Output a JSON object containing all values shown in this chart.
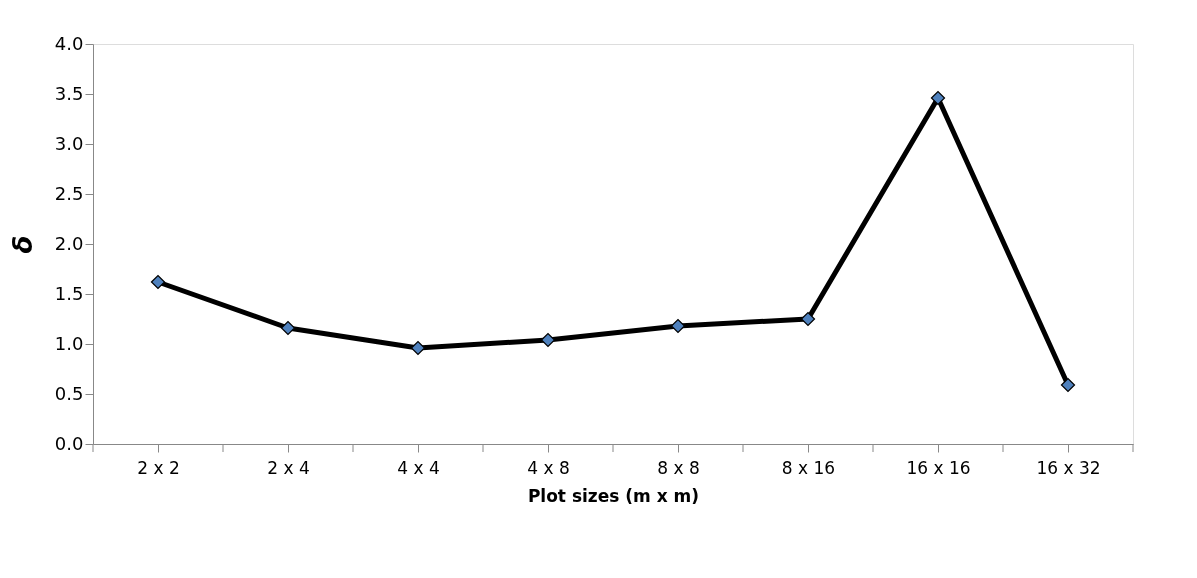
{
  "chart_data": {
    "type": "line",
    "xlabel": "Plot sizes (m x m)",
    "ylabel": "δ",
    "categories": [
      "2 x 2",
      "2 x 4",
      "4 x 4",
      "4 x 8",
      "8 x 8",
      "8 x 16",
      "16 x 16",
      "16 x 32"
    ],
    "series": [
      {
        "color": "#000000",
        "values": [
          1.62,
          1.16,
          0.96,
          1.04,
          1.18,
          1.25,
          3.46,
          0.59
        ]
      }
    ],
    "ylim": [
      0,
      4
    ],
    "yticks": [
      {
        "value": 0,
        "label": "0.0"
      },
      {
        "value": 0.5,
        "label": "0.5"
      },
      {
        "value": 1,
        "label": "1.0"
      },
      {
        "value": 1.5,
        "label": "1.5"
      },
      {
        "value": 2,
        "label": "2.0"
      },
      {
        "value": 2.5,
        "label": "2.5"
      },
      {
        "value": 3,
        "label": "3.0"
      },
      {
        "value": 3.5,
        "label": "3.5"
      },
      {
        "value": 4,
        "label": "4.0"
      }
    ],
    "grid": false,
    "legend": false,
    "marker": "diamond",
    "line_style": "solid"
  }
}
